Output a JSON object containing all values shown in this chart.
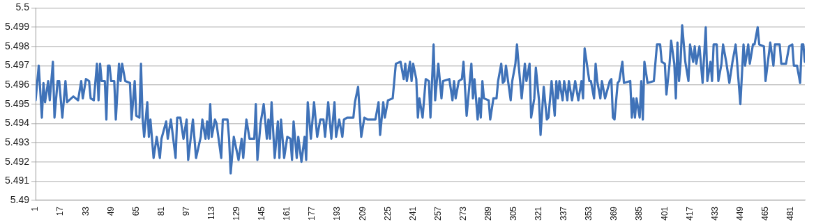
{
  "chart_data": {
    "type": "line",
    "xlim": [
      1,
      490
    ],
    "xticks": [
      1,
      17,
      33,
      49,
      65,
      81,
      97,
      113,
      129,
      145,
      161,
      177,
      193,
      209,
      225,
      241,
      257,
      273,
      289,
      305,
      321,
      337,
      353,
      369,
      385,
      401,
      417,
      433,
      449,
      465,
      481
    ],
    "ylim": [
      5.49,
      5.5
    ],
    "yticks": [
      5.49,
      5.491,
      5.492,
      5.493,
      5.494,
      5.495,
      5.496,
      5.497,
      5.498,
      5.499,
      5.5
    ],
    "grid": "y",
    "legend": false,
    "marker": "none",
    "line_style": "solid",
    "series": [
      {
        "color": "#3f72b8",
        "x": [
          1,
          3,
          5,
          6,
          7,
          9,
          10,
          12,
          13,
          15,
          16,
          18,
          20,
          21,
          25,
          28,
          30,
          31,
          33,
          35,
          36,
          38,
          40,
          41,
          42,
          43,
          45,
          46,
          47,
          48,
          49,
          51,
          52,
          54,
          55,
          56,
          58,
          61,
          62,
          64,
          65,
          67,
          68,
          69,
          70,
          72,
          73,
          74,
          76,
          78,
          80,
          81,
          84,
          85,
          87,
          90,
          91,
          93,
          95,
          97,
          98,
          101,
          103,
          106,
          107,
          109,
          110,
          111,
          112,
          113,
          115,
          116,
          119,
          120,
          123,
          124,
          125,
          127,
          130,
          132,
          133,
          135,
          137,
          140,
          141,
          142,
          144,
          146,
          148,
          149,
          150,
          151,
          153,
          155,
          156,
          157,
          159,
          161,
          163,
          164,
          165,
          167,
          168,
          170,
          172,
          173,
          174,
          176,
          178,
          180,
          182,
          184,
          185,
          187,
          189,
          191,
          192,
          194,
          196,
          197,
          199,
          203,
          204,
          206,
          208,
          210,
          212,
          217,
          219,
          220,
          222,
          223,
          225,
          228,
          229,
          230,
          233,
          235,
          236,
          237,
          239,
          240,
          241,
          243,
          244,
          245,
          247,
          249,
          251,
          252,
          254,
          255,
          257,
          259,
          260,
          264,
          266,
          267,
          268,
          270,
          272,
          273,
          275,
          278,
          279,
          280,
          282,
          283,
          284,
          285,
          286,
          289,
          290,
          292,
          294,
          295,
          297,
          298,
          299,
          300,
          303,
          304,
          306,
          307,
          308,
          309,
          310,
          312,
          313,
          315,
          316,
          318,
          319,
          321,
          322,
          324,
          326,
          327,
          329,
          331,
          332,
          333,
          334,
          336,
          337,
          339,
          340,
          342,
          344,
          346,
          348,
          349,
          350,
          353,
          354,
          356,
          357,
          358,
          360,
          361,
          363,
          366,
          367,
          368,
          369,
          371,
          372,
          374,
          375,
          379,
          380,
          381,
          382,
          383,
          385,
          386,
          387,
          388,
          390,
          394,
          396,
          398,
          399,
          401,
          402,
          404,
          405,
          407,
          408,
          409,
          410,
          411,
          412,
          414,
          416,
          417,
          419,
          420,
          421,
          423,
          425,
          427,
          428,
          430,
          431,
          432,
          434,
          435,
          437,
          438,
          440,
          442,
          444,
          446,
          447,
          449,
          451,
          452,
          454,
          455,
          457,
          458,
          460,
          461,
          464,
          465,
          468,
          470,
          471,
          474,
          475,
          478,
          480,
          482,
          483,
          485,
          487,
          488,
          489,
          490
        ],
        "values": [
          5.4952,
          5.497,
          5.4943,
          5.4961,
          5.4951,
          5.4962,
          5.4952,
          5.4972,
          5.4943,
          5.4962,
          5.4962,
          5.4943,
          5.4962,
          5.4951,
          5.4954,
          5.4952,
          5.4962,
          5.4953,
          5.4963,
          5.4962,
          5.4953,
          5.4952,
          5.4971,
          5.4952,
          5.4971,
          5.4962,
          5.4962,
          5.4942,
          5.497,
          5.497,
          5.4962,
          5.4962,
          5.4942,
          5.4971,
          5.4962,
          5.4971,
          5.4962,
          5.4961,
          5.4942,
          5.4962,
          5.4944,
          5.4943,
          5.4971,
          5.4943,
          5.4933,
          5.4951,
          5.4933,
          5.4942,
          5.4922,
          5.4933,
          5.4922,
          5.4932,
          5.4941,
          5.4932,
          5.4942,
          5.4922,
          5.4943,
          5.4943,
          5.4932,
          5.4942,
          5.4921,
          5.4942,
          5.4922,
          5.4933,
          5.4942,
          5.4932,
          5.4941,
          5.4932,
          5.495,
          5.4933,
          5.4942,
          5.494,
          5.4922,
          5.4942,
          5.4942,
          5.4932,
          5.4914,
          5.4933,
          5.4921,
          5.4932,
          5.4922,
          5.4942,
          5.4932,
          5.4932,
          5.495,
          5.4921,
          5.494,
          5.495,
          5.4932,
          5.4942,
          5.4932,
          5.4951,
          5.4922,
          5.4941,
          5.4922,
          5.4942,
          5.4922,
          5.4933,
          5.4932,
          5.4921,
          5.4941,
          5.4922,
          5.4933,
          5.492,
          5.4933,
          5.4921,
          5.4951,
          5.4932,
          5.4951,
          5.4933,
          5.4942,
          5.4942,
          5.4933,
          5.4951,
          5.4932,
          5.4951,
          5.4933,
          5.4942,
          5.4933,
          5.4942,
          5.4943,
          5.4943,
          5.4951,
          5.4959,
          5.4933,
          5.4943,
          5.4942,
          5.4942,
          5.4951,
          5.4934,
          5.4951,
          5.4943,
          5.4952,
          5.4953,
          5.4962,
          5.4971,
          5.4972,
          5.4963,
          5.4971,
          5.4962,
          5.4972,
          5.4962,
          5.4971,
          5.4963,
          5.4943,
          5.4953,
          5.4943,
          5.4963,
          5.4962,
          5.4943,
          5.4981,
          5.4952,
          5.4971,
          5.4953,
          5.4962,
          5.4963,
          5.4952,
          5.4962,
          5.4953,
          5.4962,
          5.4963,
          5.4972,
          5.4944,
          5.4971,
          5.4953,
          5.4963,
          5.4942,
          5.4953,
          5.4943,
          5.4962,
          5.4953,
          5.4952,
          5.4942,
          5.4953,
          5.4953,
          5.4962,
          5.4971,
          5.4961,
          5.4962,
          5.497,
          5.4952,
          5.4962,
          5.4971,
          5.4981,
          5.4971,
          5.4962,
          5.4953,
          5.4971,
          5.4962,
          5.4971,
          5.4943,
          5.4953,
          5.4969,
          5.4952,
          5.4934,
          5.4959,
          5.4942,
          5.4943,
          5.4962,
          5.4944,
          5.4962,
          5.4953,
          5.4962,
          5.4952,
          5.4962,
          5.4952,
          5.4962,
          5.4952,
          5.4962,
          5.4952,
          5.4962,
          5.4953,
          5.4979,
          5.4962,
          5.4962,
          5.4953,
          5.4971,
          5.4962,
          5.4953,
          5.4962,
          5.4953,
          5.4962,
          5.4963,
          5.4943,
          5.4942,
          5.4961,
          5.4962,
          5.4972,
          5.4961,
          5.4962,
          5.4943,
          5.4953,
          5.4943,
          5.4953,
          5.4943,
          5.4962,
          5.4942,
          5.4972,
          5.4961,
          5.4962,
          5.4981,
          5.4981,
          5.4972,
          5.4971,
          5.4955,
          5.4971,
          5.4983,
          5.4971,
          5.4953,
          5.4982,
          5.4962,
          5.4972,
          5.4991,
          5.4972,
          5.4962,
          5.4981,
          5.4972,
          5.498,
          5.4971,
          5.498,
          5.4961,
          5.499,
          5.4962,
          5.4972,
          5.4962,
          5.4981,
          5.4981,
          5.4962,
          5.4971,
          5.4981,
          5.4972,
          5.4961,
          5.4972,
          5.4981,
          5.4971,
          5.495,
          5.4981,
          5.497,
          5.4981,
          5.4971,
          5.4981,
          5.4981,
          5.499,
          5.4981,
          5.498,
          5.4962,
          5.4982,
          5.497,
          5.4981,
          5.4981,
          5.4971,
          5.4971,
          5.498,
          5.4981,
          5.497,
          5.497,
          5.4961,
          5.4981,
          5.4981,
          5.4972
        ]
      }
    ]
  }
}
